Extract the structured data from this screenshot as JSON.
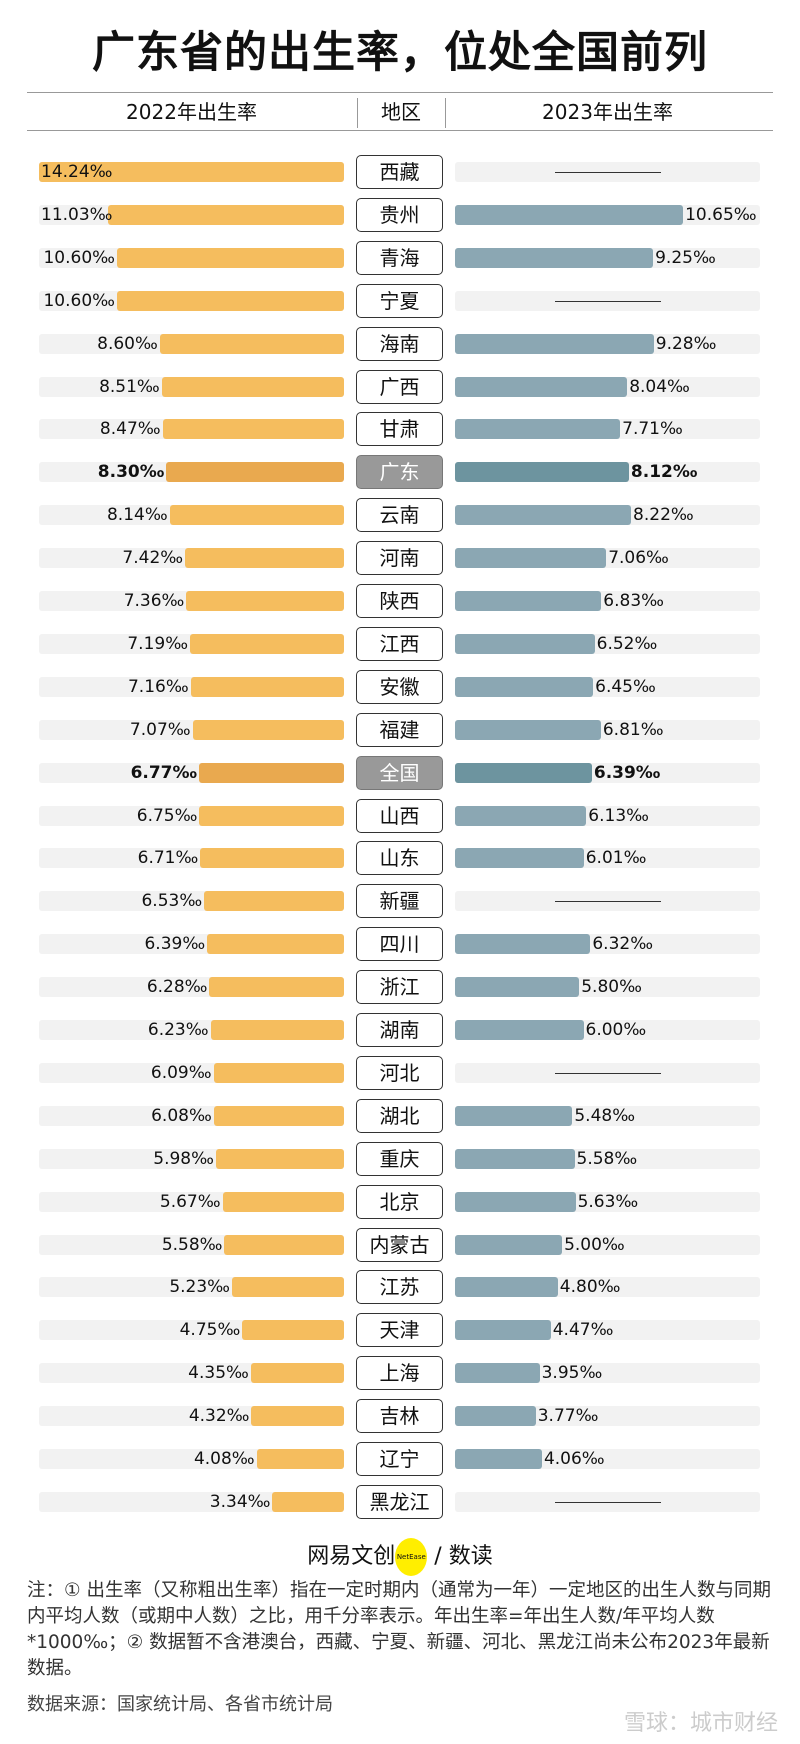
{
  "title": "广东省的出生率，位处全国前列",
  "headers": {
    "left": "2022年出生率",
    "middle": "地区",
    "right": "2023年出生率"
  },
  "colors": {
    "bar_2022": "#f5bd5e",
    "bar_2023": "#8ba7b3",
    "bar_2022_highlight": "#e9a94f",
    "bar_2023_highlight": "#6d949f",
    "track": "#f2f2f2",
    "highlight_region": "#999999"
  },
  "unit": "‰",
  "chart_data": {
    "type": "bar",
    "orientation": "horizontal-butterfly",
    "xlim": [
      0,
      14.24
    ],
    "series_labels": [
      "2022年出生率",
      "2023年出生率"
    ],
    "rows": [
      {
        "region": "西藏",
        "v2022": 14.24,
        "v2023": null
      },
      {
        "region": "贵州",
        "v2022": 11.03,
        "v2023": 10.65
      },
      {
        "region": "青海",
        "v2022": 10.6,
        "v2023": 9.25
      },
      {
        "region": "宁夏",
        "v2022": 10.6,
        "v2023": null
      },
      {
        "region": "海南",
        "v2022": 8.6,
        "v2023": 9.28
      },
      {
        "region": "广西",
        "v2022": 8.51,
        "v2023": 8.04
      },
      {
        "region": "甘肃",
        "v2022": 8.47,
        "v2023": 7.71
      },
      {
        "region": "广东",
        "v2022": 8.3,
        "v2023": 8.12,
        "highlight": true
      },
      {
        "region": "云南",
        "v2022": 8.14,
        "v2023": 8.22
      },
      {
        "region": "河南",
        "v2022": 7.42,
        "v2023": 7.06
      },
      {
        "region": "陕西",
        "v2022": 7.36,
        "v2023": 6.83
      },
      {
        "region": "江西",
        "v2022": 7.19,
        "v2023": 6.52
      },
      {
        "region": "安徽",
        "v2022": 7.16,
        "v2023": 6.45
      },
      {
        "region": "福建",
        "v2022": 7.07,
        "v2023": 6.81
      },
      {
        "region": "全国",
        "v2022": 6.77,
        "v2023": 6.39,
        "highlight": true
      },
      {
        "region": "山西",
        "v2022": 6.75,
        "v2023": 6.13
      },
      {
        "region": "山东",
        "v2022": 6.71,
        "v2023": 6.01
      },
      {
        "region": "新疆",
        "v2022": 6.53,
        "v2023": null
      },
      {
        "region": "四川",
        "v2022": 6.39,
        "v2023": 6.32
      },
      {
        "region": "浙江",
        "v2022": 6.28,
        "v2023": 5.8
      },
      {
        "region": "湖南",
        "v2022": 6.23,
        "v2023": 6.0
      },
      {
        "region": "河北",
        "v2022": 6.09,
        "v2023": null
      },
      {
        "region": "湖北",
        "v2022": 6.08,
        "v2023": 5.48
      },
      {
        "region": "重庆",
        "v2022": 5.98,
        "v2023": 5.58
      },
      {
        "region": "北京",
        "v2022": 5.67,
        "v2023": 5.63
      },
      {
        "region": "内蒙古",
        "v2022": 5.58,
        "v2023": 5.0
      },
      {
        "region": "江苏",
        "v2022": 5.23,
        "v2023": 4.8
      },
      {
        "region": "天津",
        "v2022": 4.75,
        "v2023": 4.47
      },
      {
        "region": "上海",
        "v2022": 4.35,
        "v2023": 3.95
      },
      {
        "region": "吉林",
        "v2022": 4.32,
        "v2023": 3.77
      },
      {
        "region": "辽宁",
        "v2022": 4.08,
        "v2023": 4.06
      },
      {
        "region": "黑龙江",
        "v2022": 3.34,
        "v2023": null
      }
    ]
  },
  "logo": {
    "name": "网易文创",
    "badge": "NetEase",
    "suffix": "/ 数读"
  },
  "note": "注：① 出生率（又称粗出生率）指在一定时期内（通常为一年）一定地区的出生人数与同期内平均人数（或期中人数）之比，用千分率表示。年出生率=年出生人数/年平均人数*1000‰；② 数据暂不含港澳台，西藏、宁夏、新疆、河北、黑龙江尚未公布2023年最新数据。",
  "source": "数据来源：国家统计局、各省市统计局",
  "watermark": "雪球：城市财经"
}
